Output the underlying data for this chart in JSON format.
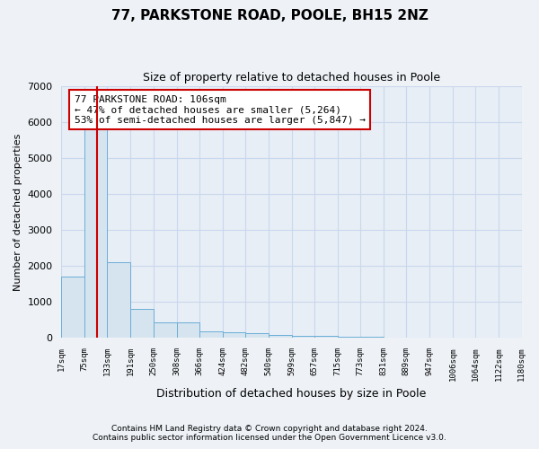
{
  "title": "77, PARKSTONE ROAD, POOLE, BH15 2NZ",
  "subtitle": "Size of property relative to detached houses in Poole",
  "xlabel": "Distribution of detached houses by size in Poole",
  "ylabel": "Number of detached properties",
  "bar_edges": [
    17,
    75,
    133,
    191,
    250,
    308,
    366,
    424,
    482,
    540,
    599,
    657,
    715,
    773,
    831,
    889,
    947,
    1006,
    1064,
    1122,
    1180
  ],
  "bar_heights": [
    1700,
    5850,
    2100,
    800,
    430,
    430,
    190,
    155,
    125,
    95,
    65,
    50,
    35,
    25,
    12,
    8,
    6,
    4,
    3,
    2,
    1
  ],
  "bar_color": "#d6e4f0",
  "bar_edge_color": "#6aaed6",
  "grid_color": "#c8d8ec",
  "vline_x": 106,
  "vline_color": "#cc0000",
  "annotation_text": "77 PARKSTONE ROAD: 106sqm\n← 47% of detached houses are smaller (5,264)\n53% of semi-detached houses are larger (5,847) →",
  "annotation_box_color": "#ffffff",
  "annotation_box_edge_color": "#cc0000",
  "ylim": [
    0,
    7000
  ],
  "yticks": [
    0,
    1000,
    2000,
    3000,
    4000,
    5000,
    6000,
    7000
  ],
  "footer_line1": "Contains HM Land Registry data © Crown copyright and database right 2024.",
  "footer_line2": "Contains public sector information licensed under the Open Government Licence v3.0.",
  "bg_color": "#eef2f7",
  "plot_bg_color": "#e8eef6"
}
